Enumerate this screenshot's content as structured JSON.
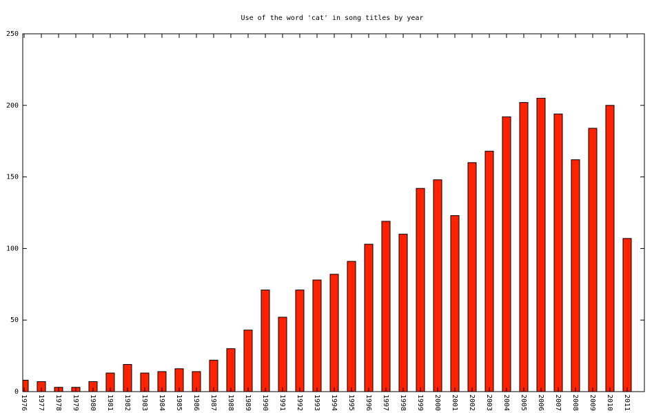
{
  "chart_data": {
    "type": "bar",
    "title": "Use of the word 'cat' in song titles by year",
    "categories": [
      "1976",
      "1977",
      "1978",
      "1979",
      "1980",
      "1981",
      "1982",
      "1983",
      "1984",
      "1985",
      "1986",
      "1987",
      "1988",
      "1989",
      "1990",
      "1991",
      "1992",
      "1993",
      "1994",
      "1995",
      "1996",
      "1997",
      "1998",
      "1999",
      "2000",
      "2001",
      "2002",
      "2003",
      "2004",
      "2005",
      "2006",
      "2007",
      "2008",
      "2009",
      "2010",
      "2011"
    ],
    "values": [
      8,
      7,
      3,
      3,
      7,
      13,
      19,
      13,
      14,
      16,
      14,
      22,
      30,
      43,
      71,
      52,
      71,
      78,
      82,
      91,
      103,
      119,
      110,
      142,
      148,
      123,
      160,
      168,
      192,
      202,
      205,
      194,
      162,
      184,
      200,
      107
    ],
    "color": "#ff2200",
    "ylim": [
      0,
      250
    ],
    "yticks": [
      0,
      50,
      100,
      150,
      200,
      250
    ]
  }
}
